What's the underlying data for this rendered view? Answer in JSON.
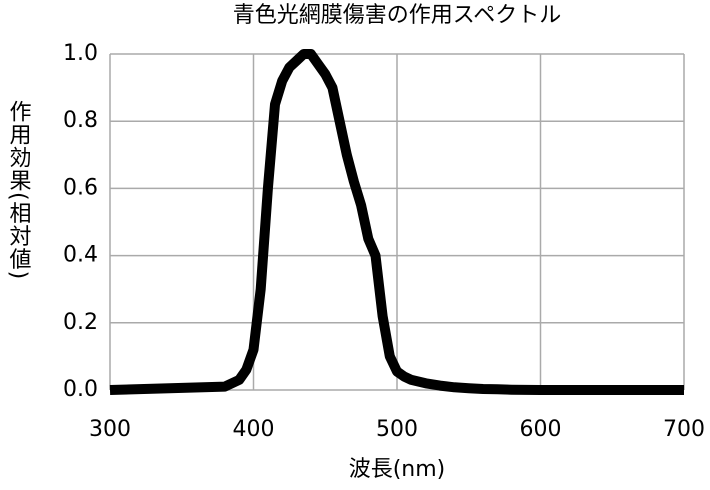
{
  "chart_data": {
    "type": "line",
    "title": "青色光網膜傷害の作用スペクトル",
    "x_label": "波長(nm)",
    "y_label": "作用効果(相対値)",
    "x": [
      300,
      380,
      390,
      395,
      400,
      405,
      410,
      415,
      420,
      425,
      430,
      435,
      440,
      445,
      450,
      455,
      460,
      465,
      470,
      475,
      480,
      485,
      490,
      495,
      500,
      505,
      510,
      520,
      530,
      540,
      550,
      560,
      570,
      580,
      600,
      700
    ],
    "values": [
      0,
      0.01,
      0.03,
      0.06,
      0.12,
      0.3,
      0.6,
      0.85,
      0.92,
      0.96,
      0.98,
      1.0,
      1.0,
      0.97,
      0.94,
      0.9,
      0.8,
      0.7,
      0.62,
      0.55,
      0.45,
      0.4,
      0.22,
      0.1,
      0.055,
      0.04,
      0.03,
      0.02,
      0.013,
      0.008,
      0.005,
      0.003,
      0.002,
      0.001,
      0,
      0
    ],
    "color": "#000000",
    "xlim": [
      300,
      700
    ],
    "xticks": [
      300,
      400,
      500,
      600,
      700
    ],
    "ylim": [
      0,
      1
    ],
    "yticks": [
      {
        "value": 0,
        "label": "0.0"
      },
      0.2,
      0.4,
      0.6,
      0.8,
      {
        "value": 1,
        "label": "1.0"
      }
    ],
    "grid": true
  }
}
